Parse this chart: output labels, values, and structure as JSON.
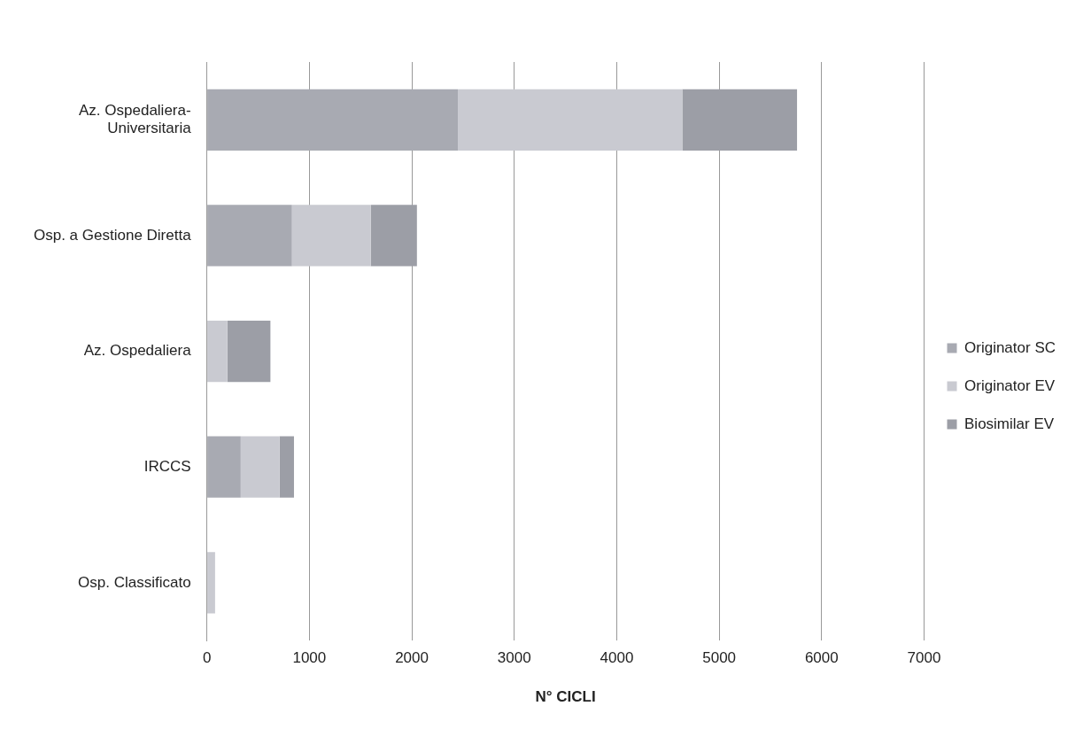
{
  "chart_data": {
    "type": "bar",
    "orientation": "horizontal",
    "stacked": true,
    "xlabel": "N° CICLI",
    "categories": [
      "Az. Ospedaliera-Universitaria",
      "Osp. a Gestione Diretta",
      "Az. Ospedaliera",
      "IRCCS",
      "Osp. Classificato"
    ],
    "series": [
      {
        "name": "Originator SC",
        "color": "#a8aab2",
        "values": [
          2450,
          830,
          0,
          330,
          0
        ]
      },
      {
        "name": "Originator EV",
        "color": "#c9cad1",
        "values": [
          2190,
          770,
          200,
          380,
          80
        ]
      },
      {
        "name": "Biosimilar EV",
        "color": "#9c9ea6",
        "values": [
          1120,
          450,
          420,
          140,
          0
        ]
      }
    ],
    "xlim": [
      0,
      7000
    ],
    "xticks": [
      0,
      1000,
      2000,
      3000,
      4000,
      5000,
      6000,
      7000
    ],
    "grid": "x",
    "legend": "right"
  }
}
